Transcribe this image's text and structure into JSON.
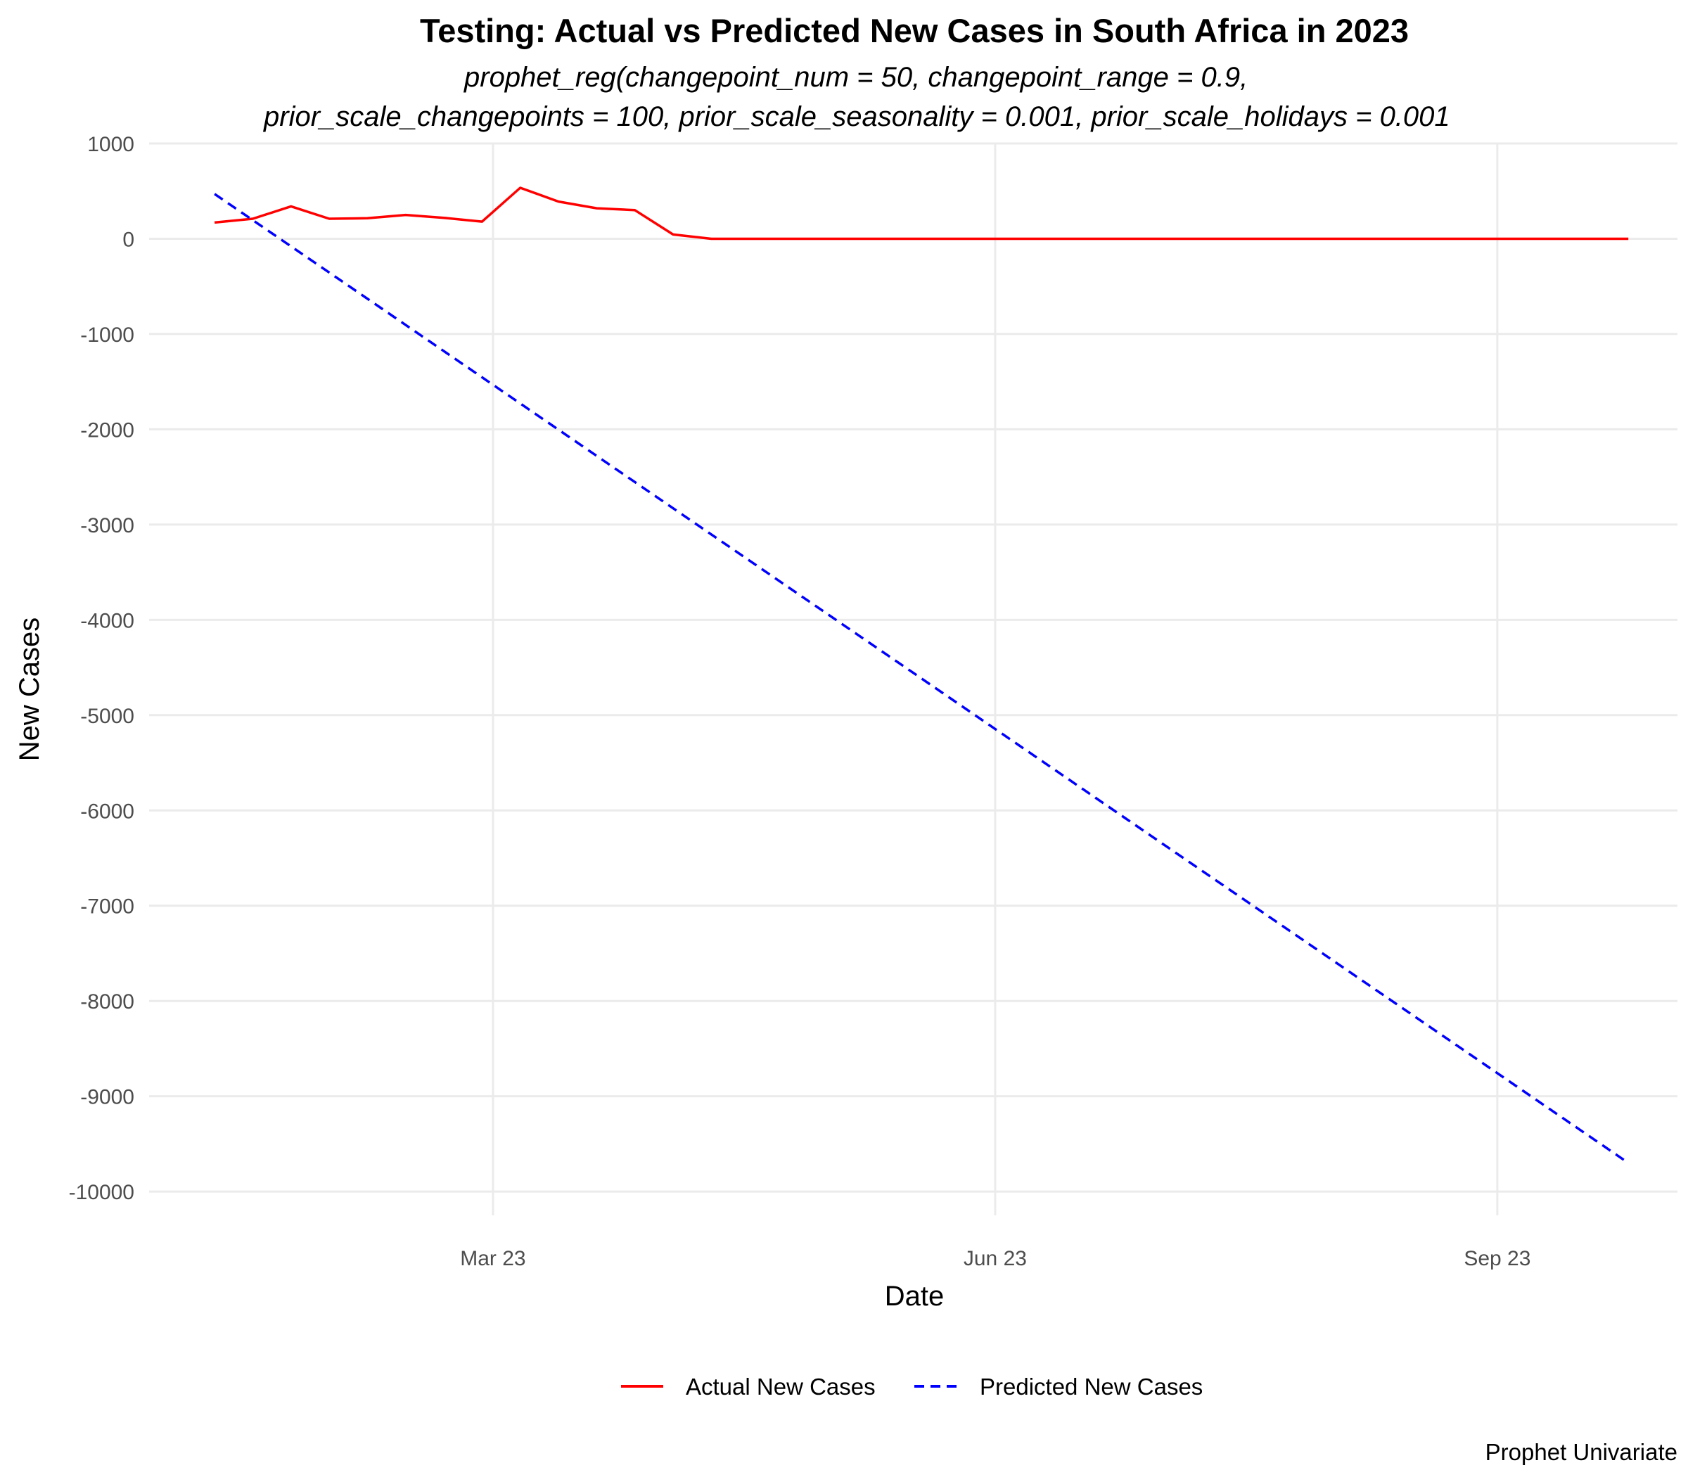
{
  "chart_data": {
    "type": "line",
    "title": "Testing: Actual vs Predicted New Cases in South Africa in 2023",
    "subtitle_lines": [
      "prophet_reg(changepoint_num = 50, changepoint_range = 0.9,",
      "prior_scale_changepoints = 100, prior_scale_seasonality = 0.001, prior_scale_holidays = 0.001"
    ],
    "xlabel": "Date",
    "ylabel": "New Cases",
    "caption": "Prophet Univariate",
    "x_ticks": [
      {
        "date": "2023-03-01",
        "label": "Mar 23"
      },
      {
        "date": "2023-06-01",
        "label": "Jun 23"
      },
      {
        "date": "2023-09-01",
        "label": "Sep 23"
      }
    ],
    "xlim": [
      "2022-12-28",
      "2023-10-04"
    ],
    "ylim": [
      -10250,
      1000
    ],
    "y_ticks": [
      1000,
      0,
      -1000,
      -2000,
      -3000,
      -4000,
      -5000,
      -6000,
      -7000,
      -8000,
      -9000,
      -10000
    ],
    "grid": true,
    "legend_position": "bottom",
    "series": [
      {
        "name": "Actual New Cases",
        "color": "#ff0000",
        "dash": "solid",
        "points": [
          {
            "x": "2023-01-09",
            "y": 170
          },
          {
            "x": "2023-01-16",
            "y": 210
          },
          {
            "x": "2023-01-23",
            "y": 340
          },
          {
            "x": "2023-01-30",
            "y": 210
          },
          {
            "x": "2023-02-06",
            "y": 215
          },
          {
            "x": "2023-02-13",
            "y": 250
          },
          {
            "x": "2023-02-20",
            "y": 220
          },
          {
            "x": "2023-02-27",
            "y": 180
          },
          {
            "x": "2023-03-06",
            "y": 535
          },
          {
            "x": "2023-03-13",
            "y": 390
          },
          {
            "x": "2023-03-20",
            "y": 320
          },
          {
            "x": "2023-03-27",
            "y": 300
          },
          {
            "x": "2023-04-03",
            "y": 45
          },
          {
            "x": "2023-04-10",
            "y": 0
          },
          {
            "x": "2023-04-17",
            "y": 0
          },
          {
            "x": "2023-09-25",
            "y": 0
          }
        ]
      },
      {
        "name": "Predicted New Cases",
        "color": "#0000ff",
        "dash": "dashed",
        "points": [
          {
            "x": "2023-01-09",
            "y": 470
          },
          {
            "x": "2023-09-25",
            "y": -9700
          }
        ]
      }
    ]
  }
}
